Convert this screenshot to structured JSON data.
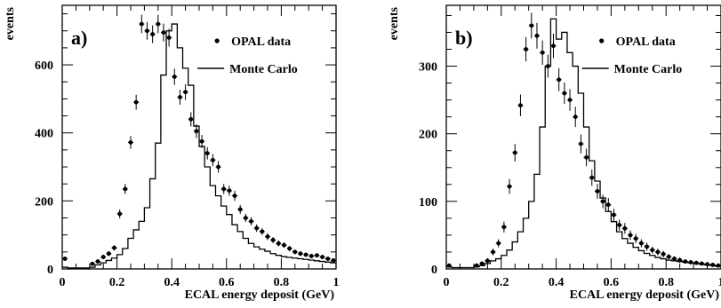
{
  "chart_data": [
    {
      "type": "histogram",
      "panel_label": "a)",
      "xlabel": "ECAL energy deposit  (GeV)",
      "ylabel": "events",
      "xlim": [
        0,
        1
      ],
      "ylim": [
        0,
        775
      ],
      "xticks": [
        0,
        0.2,
        0.4,
        0.6,
        0.8,
        1
      ],
      "xtick_labels": [
        "0",
        "0.2",
        "0.4",
        "0.6",
        "0.8",
        "1"
      ],
      "yticks": [
        0,
        200,
        400,
        600
      ],
      "ytick_labels": [
        "0",
        "200",
        "400",
        "600"
      ],
      "legend": [
        "OPAL data",
        "Monte Carlo"
      ],
      "legend_position": "top-right",
      "series": [
        {
          "name": "OPAL data",
          "style": "points-with-error-bars",
          "x": [
            0.01,
            0.11,
            0.13,
            0.15,
            0.17,
            0.19,
            0.21,
            0.23,
            0.25,
            0.27,
            0.29,
            0.31,
            0.33,
            0.35,
            0.37,
            0.39,
            0.41,
            0.43,
            0.45,
            0.47,
            0.49,
            0.51,
            0.53,
            0.55,
            0.57,
            0.59,
            0.61,
            0.63,
            0.65,
            0.67,
            0.69,
            0.71,
            0.73,
            0.75,
            0.77,
            0.79,
            0.81,
            0.83,
            0.85,
            0.87,
            0.89,
            0.91,
            0.93,
            0.95,
            0.97,
            0.99
          ],
          "y": [
            30,
            15,
            22,
            35,
            45,
            62,
            162,
            235,
            372,
            490,
            720,
            700,
            690,
            720,
            695,
            680,
            565,
            505,
            520,
            440,
            405,
            375,
            340,
            320,
            300,
            235,
            230,
            215,
            175,
            150,
            140,
            120,
            110,
            95,
            85,
            75,
            70,
            60,
            50,
            45,
            42,
            38,
            40,
            35,
            30,
            25
          ],
          "yerr": [
            6,
            4,
            5,
            6,
            7,
            8,
            13,
            15,
            19,
            22,
            27,
            26,
            26,
            27,
            26,
            26,
            24,
            22,
            23,
            21,
            20,
            19,
            18,
            18,
            17,
            15,
            15,
            15,
            13,
            12,
            12,
            11,
            10,
            10,
            9,
            9,
            8,
            8,
            7,
            7,
            6,
            6,
            6,
            6,
            5,
            5
          ]
        },
        {
          "name": "Monte Carlo",
          "style": "step-histogram",
          "bin_edges": [
            0,
            0.02,
            0.04,
            0.06,
            0.08,
            0.1,
            0.12,
            0.14,
            0.16,
            0.18,
            0.2,
            0.22,
            0.24,
            0.26,
            0.28,
            0.3,
            0.32,
            0.34,
            0.36,
            0.38,
            0.4,
            0.42,
            0.44,
            0.46,
            0.48,
            0.5,
            0.52,
            0.54,
            0.56,
            0.58,
            0.6,
            0.62,
            0.64,
            0.66,
            0.68,
            0.7,
            0.72,
            0.74,
            0.76,
            0.78,
            0.8,
            0.82,
            0.84,
            0.86,
            0.88,
            0.9,
            0.92,
            0.94,
            0.96,
            0.98,
            1.0
          ],
          "values": [
            5,
            3,
            3,
            3,
            3,
            5,
            12,
            18,
            25,
            32,
            42,
            60,
            90,
            115,
            140,
            180,
            265,
            370,
            570,
            700,
            720,
            650,
            590,
            540,
            420,
            360,
            300,
            245,
            215,
            185,
            160,
            130,
            110,
            90,
            75,
            65,
            58,
            52,
            45,
            40,
            36,
            34,
            32,
            30,
            28,
            26,
            24,
            22,
            20,
            18
          ]
        }
      ]
    },
    {
      "type": "histogram",
      "panel_label": "b)",
      "xlabel": "ECAL energy deposit  (GeV)",
      "ylabel": "events",
      "xlim": [
        0,
        1
      ],
      "ylim": [
        0,
        390
      ],
      "xticks": [
        0,
        0.2,
        0.4,
        0.6,
        0.8,
        1
      ],
      "xtick_labels": [
        "0",
        "0.2",
        "0.4",
        "0.6",
        "0.8",
        "1"
      ],
      "yticks": [
        0,
        100,
        200,
        300
      ],
      "ytick_labels": [
        "0",
        "100",
        "200",
        "300"
      ],
      "legend": [
        "OPAL data",
        "Monte Carlo"
      ],
      "legend_position": "top-right",
      "series": [
        {
          "name": "OPAL data",
          "style": "points-with-error-bars",
          "x": [
            0.01,
            0.11,
            0.13,
            0.15,
            0.17,
            0.19,
            0.21,
            0.23,
            0.25,
            0.27,
            0.29,
            0.31,
            0.33,
            0.35,
            0.37,
            0.39,
            0.41,
            0.43,
            0.45,
            0.47,
            0.49,
            0.51,
            0.53,
            0.55,
            0.57,
            0.59,
            0.61,
            0.63,
            0.65,
            0.67,
            0.69,
            0.71,
            0.73,
            0.75,
            0.77,
            0.79,
            0.81,
            0.83,
            0.85,
            0.87,
            0.89,
            0.91,
            0.93,
            0.95,
            0.97,
            0.99
          ],
          "y": [
            5,
            5,
            8,
            12,
            25,
            38,
            62,
            122,
            172,
            242,
            325,
            360,
            345,
            320,
            300,
            330,
            280,
            260,
            250,
            225,
            185,
            165,
            135,
            115,
            100,
            95,
            80,
            65,
            60,
            50,
            45,
            38,
            33,
            28,
            25,
            22,
            18,
            15,
            13,
            11,
            10,
            9,
            8,
            7,
            6,
            5
          ],
          "yerr": [
            3,
            3,
            3,
            4,
            5,
            6,
            8,
            11,
            13,
            16,
            18,
            19,
            19,
            18,
            17,
            18,
            17,
            16,
            16,
            15,
            14,
            13,
            12,
            11,
            10,
            10,
            9,
            8,
            8,
            7,
            7,
            6,
            6,
            5,
            5,
            5,
            4,
            4,
            4,
            3,
            3,
            3,
            3,
            3,
            2,
            2
          ]
        },
        {
          "name": "Monte Carlo",
          "style": "step-histogram",
          "bin_edges": [
            0,
            0.02,
            0.04,
            0.06,
            0.08,
            0.1,
            0.12,
            0.14,
            0.16,
            0.18,
            0.2,
            0.22,
            0.24,
            0.26,
            0.28,
            0.3,
            0.32,
            0.34,
            0.36,
            0.38,
            0.4,
            0.42,
            0.44,
            0.46,
            0.48,
            0.5,
            0.52,
            0.54,
            0.56,
            0.58,
            0.6,
            0.62,
            0.64,
            0.66,
            0.68,
            0.7,
            0.72,
            0.74,
            0.76,
            0.78,
            0.8,
            0.82,
            0.84,
            0.86,
            0.88,
            0.9,
            0.92,
            0.94,
            0.96,
            0.98,
            1.0
          ],
          "values": [
            3,
            2,
            2,
            2,
            2,
            3,
            5,
            8,
            12,
            15,
            20,
            28,
            40,
            55,
            75,
            100,
            140,
            210,
            300,
            370,
            340,
            350,
            320,
            300,
            260,
            210,
            160,
            130,
            105,
            85,
            70,
            55,
            45,
            38,
            32,
            27,
            23,
            20,
            17,
            15,
            13,
            12,
            11,
            10,
            9,
            8,
            7,
            6,
            5,
            4
          ]
        }
      ]
    }
  ]
}
